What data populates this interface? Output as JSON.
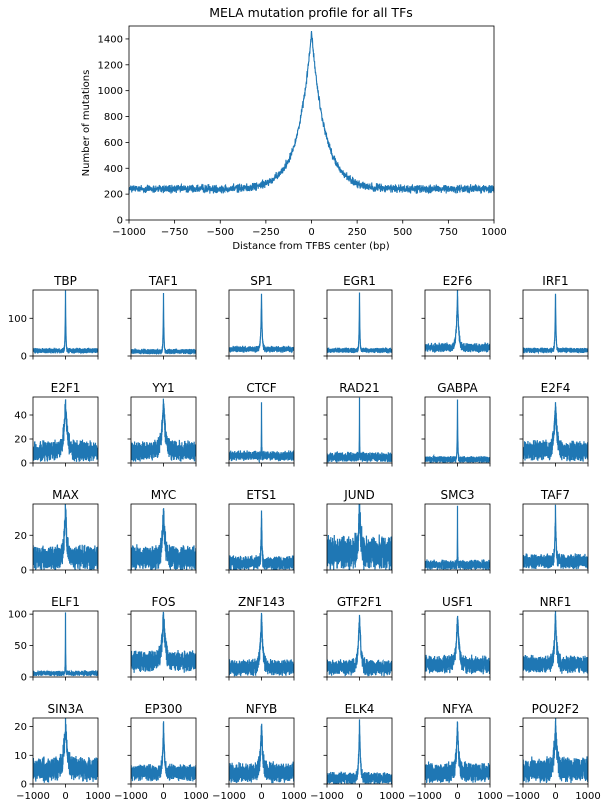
{
  "colors": {
    "line": "#1f77b4",
    "axis": "#000000",
    "background": "#ffffff"
  },
  "chart_data": [
    {
      "type": "line",
      "title": "MELA mutation profile for all TFs",
      "xlabel": "Distance from TFBS center (bp)",
      "ylabel": "Number of mutations",
      "xlim": [
        -1000,
        1000
      ],
      "ylim": [
        0,
        1500
      ],
      "xticks": [
        "−1000",
        "−750",
        "−500",
        "−250",
        "0",
        "250",
        "500",
        "750",
        "1000"
      ],
      "yticks": [
        "0",
        "200",
        "400",
        "600",
        "800",
        "1000",
        "1200",
        "1400"
      ],
      "series": [
        {
          "baseline": 240,
          "peak": 1450,
          "width": 75,
          "noise": 25
        }
      ]
    },
    {
      "type": "line",
      "layout": "grid 5x6",
      "xlim": [
        -1000,
        1000
      ],
      "xticks": [
        "−1000",
        "0",
        "1000"
      ],
      "rows": [
        {
          "ylim": [
            0,
            175
          ],
          "yticks": [
            "0",
            "100"
          ]
        },
        {
          "ylim": [
            0,
            55
          ],
          "yticks": [
            "0",
            "20",
            "40"
          ]
        },
        {
          "ylim": [
            0,
            38
          ],
          "yticks": [
            "0",
            "20"
          ]
        },
        {
          "ylim": [
            0,
            105
          ],
          "yticks": [
            "0",
            "50",
            "100"
          ]
        },
        {
          "ylim": [
            0,
            23
          ],
          "yticks": [
            "0",
            "10",
            "20"
          ]
        }
      ],
      "series": [
        {
          "name": "TBP",
          "baseline": 14,
          "peak": 170,
          "width": 12,
          "noise": 5
        },
        {
          "name": "TAF1",
          "baseline": 12,
          "peak": 165,
          "width": 12,
          "noise": 5
        },
        {
          "name": "SP1",
          "baseline": 18,
          "peak": 165,
          "width": 20,
          "noise": 6
        },
        {
          "name": "EGR1",
          "baseline": 15,
          "peak": 170,
          "width": 12,
          "noise": 5
        },
        {
          "name": "E2F6",
          "baseline": 22,
          "peak": 170,
          "width": 35,
          "noise": 9
        },
        {
          "name": "IRF1",
          "baseline": 15,
          "peak": 170,
          "width": 15,
          "noise": 5
        },
        {
          "name": "E2F1",
          "baseline": 10,
          "peak": 50,
          "width": 60,
          "noise": 6
        },
        {
          "name": "YY1",
          "baseline": 10,
          "peak": 52,
          "width": 60,
          "noise": 6
        },
        {
          "name": "CTCF",
          "baseline": 6,
          "peak": 52,
          "width": 5,
          "noise": 3
        },
        {
          "name": "RAD21",
          "baseline": 5,
          "peak": 52,
          "width": 5,
          "noise": 3
        },
        {
          "name": "GABPA",
          "baseline": 3,
          "peak": 52,
          "width": 10,
          "noise": 2
        },
        {
          "name": "E2F4",
          "baseline": 10,
          "peak": 50,
          "width": 50,
          "noise": 6
        },
        {
          "name": "MAX",
          "baseline": 7,
          "peak": 37,
          "width": 40,
          "noise": 5
        },
        {
          "name": "MYC",
          "baseline": 7,
          "peak": 36,
          "width": 45,
          "noise": 5
        },
        {
          "name": "ETS1",
          "baseline": 4,
          "peak": 37,
          "width": 15,
          "noise": 3
        },
        {
          "name": "JUND",
          "baseline": 10,
          "peak": 37,
          "width": 40,
          "noise": 7
        },
        {
          "name": "SMC3",
          "baseline": 3,
          "peak": 37,
          "width": 5,
          "noise": 2
        },
        {
          "name": "TAF7",
          "baseline": 5,
          "peak": 37,
          "width": 20,
          "noise": 3
        },
        {
          "name": "ELF1",
          "baseline": 6,
          "peak": 100,
          "width": 6,
          "noise": 3
        },
        {
          "name": "FOS",
          "baseline": 25,
          "peak": 100,
          "width": 60,
          "noise": 12
        },
        {
          "name": "ZNF143",
          "baseline": 15,
          "peak": 100,
          "width": 45,
          "noise": 9
        },
        {
          "name": "GTF2F1",
          "baseline": 15,
          "peak": 100,
          "width": 45,
          "noise": 9
        },
        {
          "name": "USF1",
          "baseline": 20,
          "peak": 100,
          "width": 50,
          "noise": 10
        },
        {
          "name": "NRF1",
          "baseline": 20,
          "peak": 100,
          "width": 40,
          "noise": 10
        },
        {
          "name": "SIN3A",
          "baseline": 5,
          "peak": 21,
          "width": 60,
          "noise": 3
        },
        {
          "name": "EP300",
          "baseline": 4,
          "peak": 21,
          "width": 30,
          "noise": 2
        },
        {
          "name": "NFYB",
          "baseline": 4,
          "peak": 21,
          "width": 40,
          "noise": 2.5
        },
        {
          "name": "ELK4",
          "baseline": 2,
          "peak": 21,
          "width": 30,
          "noise": 1.5
        },
        {
          "name": "NFYA",
          "baseline": 4,
          "peak": 21,
          "width": 40,
          "noise": 2.5
        },
        {
          "name": "POU2F2",
          "baseline": 5,
          "peak": 21,
          "width": 45,
          "noise": 3
        }
      ]
    }
  ]
}
